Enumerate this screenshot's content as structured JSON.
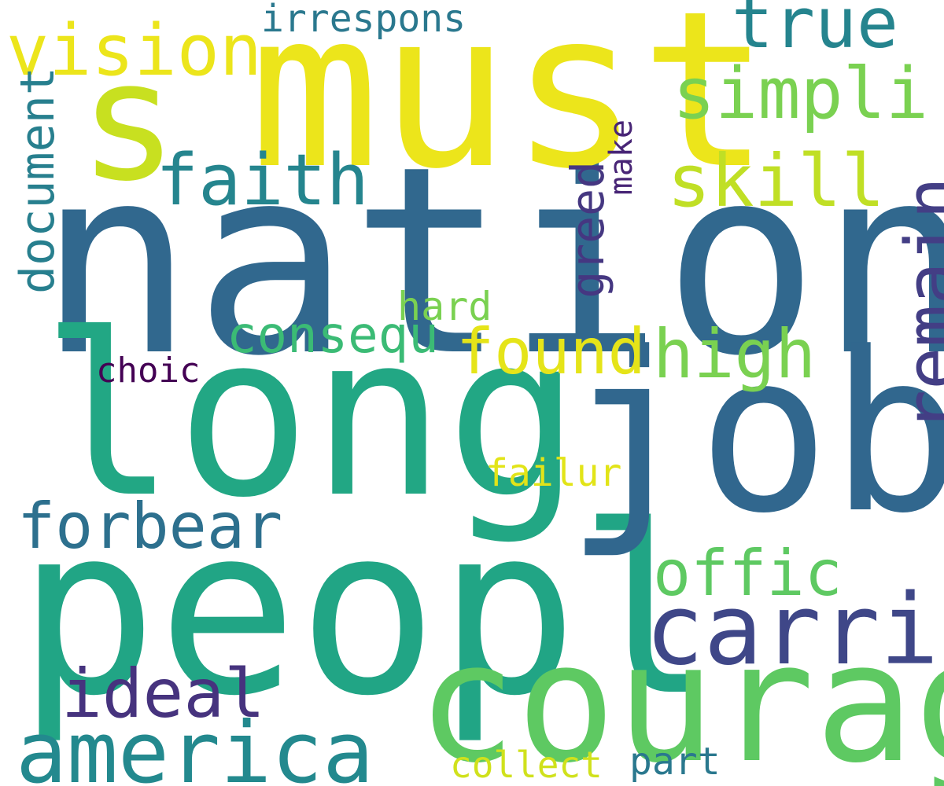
{
  "cloud": {
    "words": [
      {
        "text": "nation",
        "color": "#31688e"
      },
      {
        "text": "must",
        "color": "#ece51b"
      },
      {
        "text": "long",
        "color": "#22a784"
      },
      {
        "text": "peopl",
        "color": "#21a585"
      },
      {
        "text": "job",
        "color": "#31678e"
      },
      {
        "text": "courag",
        "color": "#5ec962"
      },
      {
        "text": "s",
        "color": "#c8e020"
      },
      {
        "text": "america",
        "color": "#23898e"
      },
      {
        "text": "carri",
        "color": "#3f4788"
      },
      {
        "text": "remain",
        "color": "#433e85"
      },
      {
        "text": "vision",
        "color": "#ece51b"
      },
      {
        "text": "simpli",
        "color": "#7ad151"
      },
      {
        "text": "faith",
        "color": "#25858e"
      },
      {
        "text": "skill",
        "color": "#c0df25"
      },
      {
        "text": "true",
        "color": "#25848e"
      },
      {
        "text": "document",
        "color": "#277f8e"
      },
      {
        "text": "offic",
        "color": "#5ec962"
      },
      {
        "text": "high",
        "color": "#7ad151"
      },
      {
        "text": "found",
        "color": "#e5e419"
      },
      {
        "text": "forbear",
        "color": "#2d708e"
      },
      {
        "text": "ideal",
        "color": "#46337e"
      },
      {
        "text": "consequ",
        "color": "#3bbb75"
      },
      {
        "text": "greed",
        "color": "#453781"
      },
      {
        "text": "make",
        "color": "#482576"
      },
      {
        "text": "irrespons",
        "color": "#2a788e"
      },
      {
        "text": "hard",
        "color": "#7ad151"
      },
      {
        "text": "choic",
        "color": "#440154"
      },
      {
        "text": "failur",
        "color": "#e2e418"
      },
      {
        "text": "collect",
        "color": "#d0e11c"
      },
      {
        "text": "part",
        "color": "#2a788e"
      }
    ]
  }
}
